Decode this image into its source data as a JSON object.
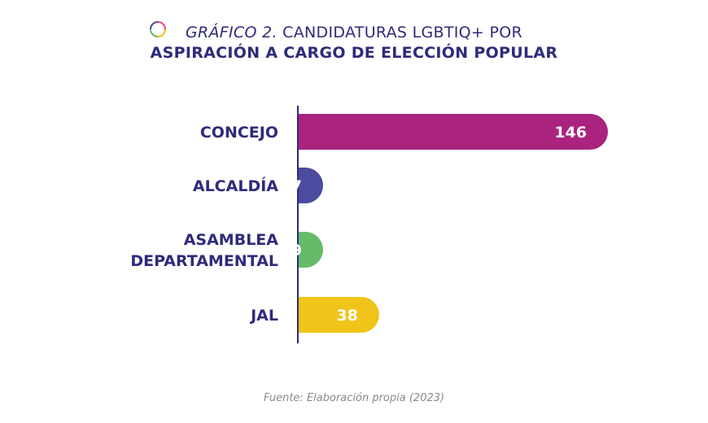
{
  "chart_data": {
    "type": "bar",
    "orientation": "horizontal",
    "title_prefix": "GRÁFICO 2.",
    "title_line1": "CANDIDATURAS LGBTIQ+ POR",
    "title_line2": "ASPIRACIÓN A CARGO DE ELECCIÓN POPULAR",
    "categories": [
      [
        "CONCEJO"
      ],
      [
        "ALCALDÍA"
      ],
      [
        "ASAMBLEA",
        "DEPARTAMENTAL"
      ],
      [
        "JAL"
      ]
    ],
    "values": [
      146,
      7,
      9,
      38
    ],
    "colors": [
      "#a9237f",
      "#4b4ba0",
      "#66bb6a",
      "#f0c419"
    ],
    "xlim": [
      0,
      146
    ],
    "grid": false,
    "legend": "none"
  },
  "source": "Fuente: Elaboración propia (2023)",
  "logo_icon": "circle-logo-icon"
}
